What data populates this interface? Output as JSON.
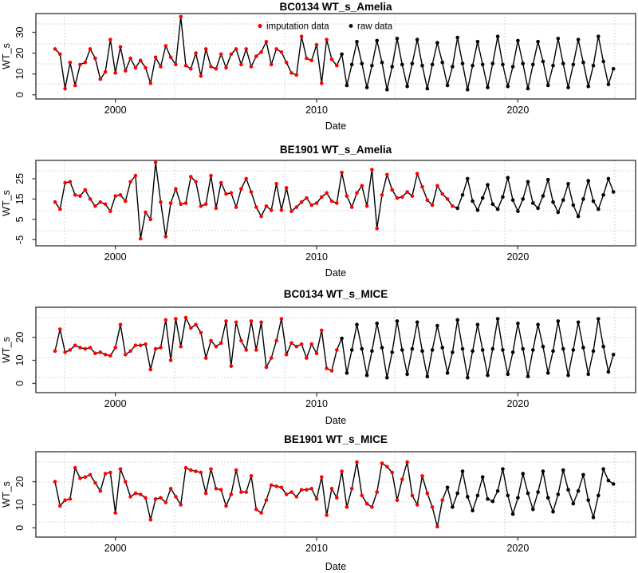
{
  "figure": {
    "background": "#ffffff",
    "panel_count": 4
  },
  "legend": {
    "items": [
      {
        "label": "imputation data",
        "color": "#ff0000",
        "marker": "dot"
      },
      {
        "label": "raw data",
        "color": "#000000",
        "marker": "dot"
      }
    ],
    "shown_on_panel": 1
  },
  "colors": {
    "imputed": "#ff0000",
    "raw": "#000000",
    "line": "#000000",
    "grid": "#c9c9c9",
    "box": "#3d3d3d",
    "text": "#000000"
  },
  "chart_data": [
    {
      "type": "line",
      "title": "BC0134 WT_s_Amelia",
      "xlabel": "Date",
      "ylabel": "WT_s",
      "x_start": 1997.0,
      "x_step": 0.25,
      "x_ticks": [
        2000,
        2010,
        2020
      ],
      "y_ticks": [
        0,
        10,
        20,
        30
      ],
      "ylim": [
        -2,
        39
      ],
      "xlim": [
        1996.05,
        2025.85
      ],
      "grid": true,
      "legend": true,
      "imputed_count": 57,
      "values": [
        22,
        19.5,
        3,
        15.5,
        4.5,
        14.5,
        15.5,
        22,
        17.5,
        7.5,
        11,
        26.5,
        10.5,
        23,
        11.5,
        17.5,
        13,
        16.5,
        13,
        5.5,
        18,
        13.5,
        23.5,
        18,
        14.5,
        37.5,
        14,
        12.5,
        20,
        9,
        22,
        13.5,
        12.5,
        19.5,
        13,
        19.5,
        22,
        14.5,
        22,
        13.5,
        18.5,
        20.5,
        25.5,
        14.5,
        22,
        20.5,
        15.5,
        10.5,
        9.5,
        28,
        17.5,
        16.5,
        24,
        5.5,
        26.5,
        17,
        14,
        19.5,
        4.5,
        14.5,
        25.5,
        15,
        3.5,
        14,
        26,
        15.5,
        2.5,
        13.5,
        27,
        14.5,
        4,
        15,
        26.5,
        14,
        3,
        14.5,
        25,
        15.5,
        4.5,
        13.5,
        27.5,
        15,
        2.5,
        14,
        25.5,
        14.5,
        3.5,
        15,
        28,
        14.5,
        4,
        13.5,
        26,
        15,
        3,
        14.5,
        25.5,
        16,
        4.5,
        14,
        27,
        15,
        3.5,
        14.5,
        26.5,
        15.5,
        4,
        14,
        28,
        16,
        5,
        12.5
      ]
    },
    {
      "type": "line",
      "title": "BE1901 WT_s_Amelia",
      "xlabel": "Date",
      "ylabel": "WT_s",
      "x_start": 1997.0,
      "x_step": 0.25,
      "x_ticks": [
        2000,
        2010,
        2020
      ],
      "y_ticks": [
        -5,
        5,
        15,
        25
      ],
      "ylim": [
        -8,
        34
      ],
      "xlim": [
        1996.05,
        2025.85
      ],
      "grid": true,
      "legend": false,
      "imputed_count": 80,
      "values": [
        13.5,
        10,
        23,
        23.5,
        17,
        16.5,
        19.5,
        15,
        11.5,
        13.5,
        12.5,
        9,
        16.5,
        17,
        14,
        23.5,
        26.5,
        -4.5,
        8.5,
        5,
        33,
        13.5,
        -3.5,
        13,
        20,
        12.5,
        13,
        26,
        23.5,
        11.5,
        12.5,
        26.5,
        10.5,
        23,
        17.5,
        18,
        11,
        20,
        25,
        18.5,
        11,
        6.5,
        11.5,
        9.5,
        22.5,
        9.5,
        20.5,
        9,
        11,
        13.5,
        15.5,
        12,
        13,
        16,
        18,
        14,
        13,
        28,
        16.5,
        11,
        18,
        21.5,
        11.5,
        29.5,
        0.5,
        17,
        27,
        19.5,
        15.5,
        16,
        18.5,
        16.5,
        27.5,
        21,
        14.5,
        12,
        21.5,
        17.5,
        15,
        11.5,
        10.5,
        17,
        25,
        14,
        9.5,
        15.5,
        22,
        12.5,
        10,
        16,
        25.5,
        14.5,
        9,
        15,
        23.5,
        13,
        10.5,
        16.5,
        24.5,
        13.5,
        8.5,
        14.5,
        22.5,
        12,
        6.5,
        15,
        24,
        14,
        10,
        17,
        25,
        18.5
      ]
    },
    {
      "type": "line",
      "title": "BC0134 WT_s_MICE",
      "xlabel": "Date",
      "ylabel": "WT_s",
      "x_start": 1997.0,
      "x_step": 0.25,
      "x_ticks": [
        2000,
        2010,
        2020
      ],
      "y_ticks": [
        0,
        10,
        20
      ],
      "ylim": [
        -4,
        33
      ],
      "xlim": [
        1996.05,
        2025.85
      ],
      "grid": true,
      "legend": false,
      "imputed_count": 57,
      "values": [
        14,
        23.5,
        13.5,
        14.5,
        16.5,
        15.5,
        15,
        15.5,
        13,
        13.5,
        12.5,
        12,
        15.5,
        25.5,
        12.5,
        14,
        16.5,
        16.5,
        17,
        6,
        15,
        15.5,
        27.5,
        10,
        28,
        16,
        28.5,
        24,
        25.5,
        22,
        11,
        18.5,
        16,
        17.5,
        27,
        7.5,
        26.5,
        18.5,
        14.5,
        27,
        14.5,
        26.5,
        7,
        11,
        18.5,
        28,
        12.5,
        17.5,
        16,
        17,
        11,
        17,
        13,
        23,
        6.5,
        5.5,
        14.5,
        19.5,
        4.5,
        14.5,
        25.5,
        15,
        3.5,
        14,
        26,
        15.5,
        2.5,
        13.5,
        27,
        14.5,
        4,
        15,
        26.5,
        14,
        3,
        14.5,
        25,
        15.5,
        4.5,
        13.5,
        27.5,
        15,
        2.5,
        14,
        25.5,
        14.5,
        3.5,
        15,
        28,
        14.5,
        4,
        13.5,
        26,
        15,
        3,
        14.5,
        25.5,
        16,
        4.5,
        14,
        27,
        15,
        3.5,
        14.5,
        26.5,
        15.5,
        4,
        14,
        28,
        16,
        5,
        12.5
      ]
    },
    {
      "type": "line",
      "title": "BE1901 WT_s_MICE",
      "xlabel": "Date",
      "ylabel": "WT_s",
      "x_start": 1997.0,
      "x_step": 0.25,
      "x_ticks": [
        2000,
        2010,
        2020
      ],
      "y_ticks": [
        0,
        10,
        20
      ],
      "ylim": [
        -4,
        33
      ],
      "xlim": [
        1996.05,
        2025.85
      ],
      "grid": true,
      "legend": false,
      "imputed_count": 78,
      "values": [
        20,
        9.5,
        12,
        12.5,
        26,
        21.5,
        22,
        23,
        19.5,
        16,
        23.5,
        24,
        6.5,
        25.5,
        20,
        13.5,
        15,
        14.5,
        13,
        3.5,
        12.5,
        13,
        11,
        17,
        13.5,
        10,
        26,
        25,
        24.5,
        24,
        15,
        25.5,
        17,
        16.5,
        9.5,
        14.5,
        25,
        15.5,
        15.5,
        22.5,
        8,
        6.5,
        12,
        18.5,
        18,
        17.5,
        14.5,
        15.5,
        13.5,
        16.5,
        16.5,
        17,
        12.5,
        22,
        5.5,
        17,
        13,
        24.5,
        9,
        17,
        28.5,
        14,
        10.5,
        9,
        15.5,
        28,
        26.5,
        24,
        12,
        21,
        28.5,
        14,
        10,
        22.5,
        15,
        9,
        0.5,
        12,
        17.5,
        9,
        15,
        24.5,
        13.5,
        7.5,
        14,
        22,
        12.5,
        11.5,
        16,
        25.5,
        14,
        6,
        13,
        23.5,
        15,
        8,
        15.5,
        24.5,
        13,
        7,
        14.5,
        25,
        16.5,
        10.5,
        16,
        23,
        12,
        4.5,
        14,
        25.5,
        20.5,
        19
      ]
    }
  ]
}
